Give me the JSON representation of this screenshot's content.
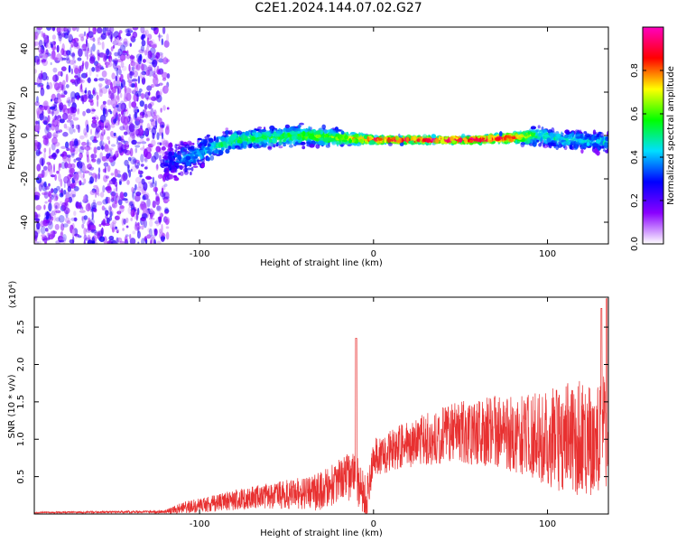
{
  "title": "C2E1.2024.144.07.02.G27",
  "chart_data": [
    {
      "type": "heatmap",
      "name": "spectrogram",
      "xlabel": "Height of straight line (km)",
      "ylabel": "Frequency (Hz)",
      "xlim": [
        -195,
        135
      ],
      "ylim": [
        -50,
        50
      ],
      "xticks": [
        -100,
        0,
        100
      ],
      "yticks": [
        -40,
        -20,
        0,
        20,
        40
      ],
      "colorbar": {
        "label": "Normalized spectral amplitude",
        "range": [
          0,
          1
        ],
        "ticks": [
          "0.0",
          "0.2",
          "0.4",
          "0.6",
          "0.8"
        ],
        "colors": [
          "#ffffff",
          "#8a00ff",
          "#0000ff",
          "#00dfff",
          "#00ff00",
          "#ffff00",
          "#ff0000",
          "#ff00c0"
        ]
      },
      "noise_region_x": [
        -195,
        -118
      ],
      "ridge": {
        "x": [
          -120,
          -100,
          -80,
          -60,
          -40,
          -20,
          0,
          20,
          40,
          60,
          80,
          95,
          110,
          135
        ],
        "freq": [
          -13,
          -8,
          -2,
          -1,
          0,
          -1,
          -2,
          -2,
          -2,
          -2,
          -1,
          0,
          -2,
          -3
        ],
        "spread": [
          12,
          9,
          6,
          6,
          6,
          5,
          2,
          2,
          2,
          2,
          3,
          6,
          6,
          6
        ],
        "amplitude": [
          0.3,
          0.4,
          0.55,
          0.55,
          0.6,
          0.65,
          0.9,
          0.95,
          0.95,
          0.95,
          0.9,
          0.5,
          0.45,
          0.45
        ]
      }
    },
    {
      "type": "line",
      "name": "snr",
      "xlabel": "Height of straight line (km)",
      "ylabel": "SNR (10 * v/v)",
      "y_multiplier": "(x10⁴)",
      "xlim": [
        -195,
        135
      ],
      "ylim": [
        0,
        2.9
      ],
      "xticks": [
        -100,
        0,
        100
      ],
      "yticks": [
        "0.5",
        "1.0",
        "1.5",
        "2.0",
        "2.5"
      ],
      "color": "#e83030",
      "spikes": [
        {
          "x": -10,
          "y": 2.35
        },
        {
          "x": 131,
          "y": 2.75
        },
        {
          "x": 134,
          "y": 2.88
        }
      ],
      "baseline": {
        "x": [
          -195,
          -120,
          -110,
          -90,
          -70,
          -50,
          -30,
          -20,
          -10,
          -7,
          -4,
          0,
          10,
          30,
          50,
          70,
          90,
          110,
          135
        ],
        "y": [
          0.02,
          0.03,
          0.08,
          0.15,
          0.22,
          0.26,
          0.3,
          0.45,
          0.5,
          0.3,
          0.2,
          0.75,
          0.85,
          1.0,
          1.1,
          1.1,
          1.05,
          1.0,
          1.05
        ]
      },
      "noise_amplitude": {
        "x": [
          -195,
          -120,
          -110,
          -90,
          -70,
          -40,
          -20,
          -10,
          0,
          30,
          60,
          90,
          110,
          135
        ],
        "y": [
          0.01,
          0.02,
          0.08,
          0.12,
          0.15,
          0.22,
          0.3,
          0.35,
          0.25,
          0.35,
          0.45,
          0.55,
          0.75,
          0.8
        ]
      }
    }
  ]
}
